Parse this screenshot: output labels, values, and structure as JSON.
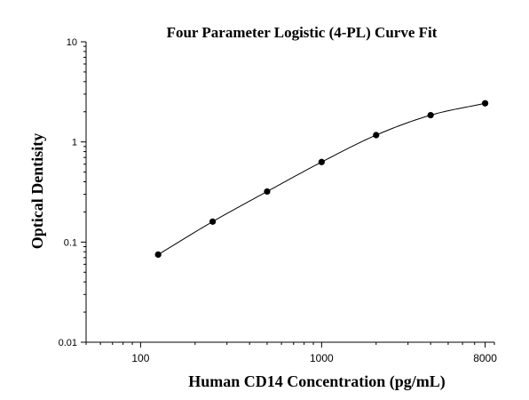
{
  "chart_data": {
    "type": "scatter",
    "title": "Four Parameter Logistic (4-PL) Curve Fit",
    "xlabel": "Human CD14 Concentration (pg/mL)",
    "ylabel": "Optical Dentisity",
    "x_scale": "log",
    "y_scale": "log",
    "xlim": [
      50,
      9000
    ],
    "ylim": [
      0.01,
      10
    ],
    "x_ticks": [
      100,
      1000,
      8000
    ],
    "x_tick_labels": [
      "100",
      "1000",
      "8000"
    ],
    "y_ticks": [
      0.01,
      0.1,
      1,
      10
    ],
    "y_tick_labels": [
      "0.01",
      "0.1",
      "1",
      "10"
    ],
    "grid": false,
    "legend": "none",
    "series": [
      {
        "x": [
          125,
          250,
          500,
          1000,
          2000,
          4000,
          8000
        ],
        "y": [
          0.075,
          0.16,
          0.32,
          0.63,
          1.17,
          1.85,
          2.43
        ],
        "marker": "circle",
        "color": "#000000"
      }
    ],
    "fit_curve": {
      "model": "4-PL",
      "color": "#000000"
    }
  }
}
